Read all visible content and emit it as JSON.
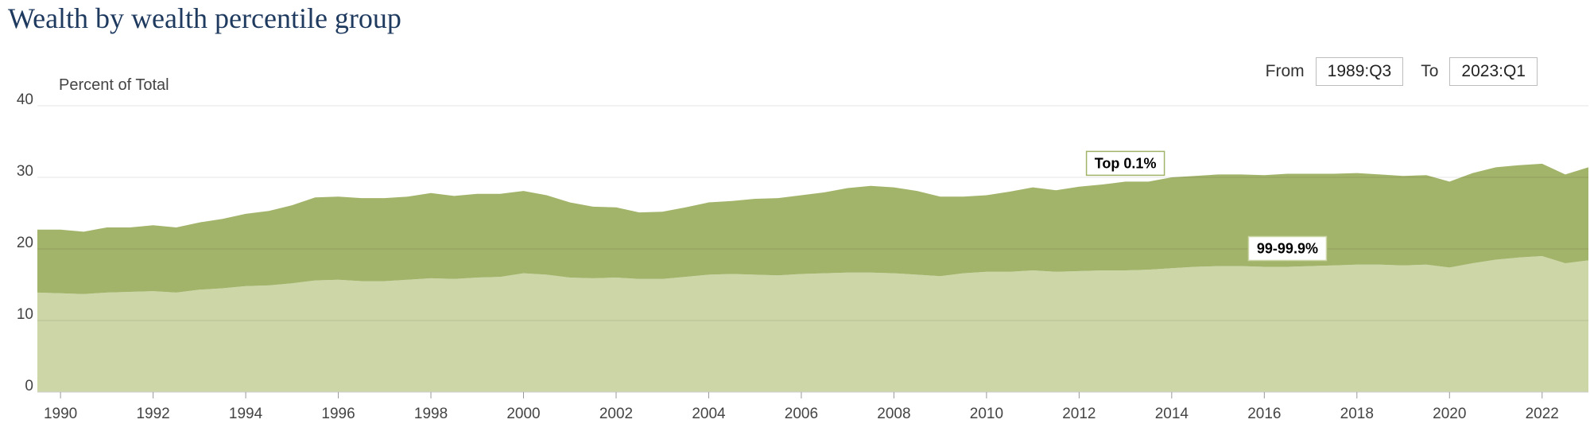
{
  "title": "Wealth by wealth percentile group",
  "range": {
    "from_label": "From",
    "from_value": "1989:Q3",
    "to_label": "To",
    "to_value": "2023:Q1"
  },
  "chart_data": {
    "type": "area",
    "stacked": true,
    "ylabel": "Percent of Total",
    "ylim": [
      0,
      40
    ],
    "yticks": [
      0,
      10,
      20,
      30,
      40
    ],
    "xlim": [
      1989.5,
      2023.0
    ],
    "xticks": [
      1990,
      1992,
      1994,
      1996,
      1998,
      2000,
      2002,
      2004,
      2006,
      2008,
      2010,
      2012,
      2014,
      2016,
      2018,
      2020,
      2022
    ],
    "grid": true,
    "x": [
      1989.5,
      1990.0,
      1990.5,
      1991.0,
      1991.5,
      1992.0,
      1992.5,
      1993.0,
      1993.5,
      1994.0,
      1994.5,
      1995.0,
      1995.5,
      1996.0,
      1996.5,
      1997.0,
      1997.5,
      1998.0,
      1998.5,
      1999.0,
      1999.5,
      2000.0,
      2000.5,
      2001.0,
      2001.5,
      2002.0,
      2002.5,
      2003.0,
      2003.5,
      2004.0,
      2004.5,
      2005.0,
      2005.5,
      2006.0,
      2006.5,
      2007.0,
      2007.5,
      2008.0,
      2008.5,
      2009.0,
      2009.5,
      2010.0,
      2010.5,
      2011.0,
      2011.5,
      2012.0,
      2012.5,
      2013.0,
      2013.5,
      2014.0,
      2014.5,
      2015.0,
      2015.5,
      2016.0,
      2016.5,
      2017.0,
      2017.5,
      2018.0,
      2018.5,
      2019.0,
      2019.5,
      2020.0,
      2020.5,
      2021.0,
      2021.5,
      2022.0,
      2022.5,
      2023.0
    ],
    "series": [
      {
        "name": "99-99.9%",
        "color": "#ccd6a6",
        "values": [
          13.9,
          13.8,
          13.7,
          13.9,
          14.0,
          14.1,
          13.9,
          14.3,
          14.5,
          14.8,
          14.9,
          15.2,
          15.6,
          15.7,
          15.5,
          15.5,
          15.7,
          15.9,
          15.8,
          16.0,
          16.1,
          16.6,
          16.4,
          16.0,
          15.9,
          16.0,
          15.8,
          15.8,
          16.1,
          16.4,
          16.5,
          16.4,
          16.3,
          16.5,
          16.6,
          16.7,
          16.7,
          16.6,
          16.4,
          16.2,
          16.6,
          16.8,
          16.8,
          17.0,
          16.8,
          16.9,
          17.0,
          17.0,
          17.1,
          17.3,
          17.5,
          17.6,
          17.6,
          17.5,
          17.5,
          17.6,
          17.7,
          17.8,
          17.8,
          17.7,
          17.8,
          17.4,
          18.0,
          18.5,
          18.8,
          19.0,
          18.0,
          18.4
        ]
      },
      {
        "name": "Top 0.1%",
        "color": "#a2b46a",
        "values": [
          8.8,
          8.9,
          8.7,
          9.1,
          9.0,
          9.2,
          9.1,
          9.4,
          9.7,
          10.1,
          10.4,
          10.9,
          11.6,
          11.6,
          11.6,
          11.6,
          11.6,
          11.9,
          11.6,
          11.7,
          11.6,
          11.5,
          11.1,
          10.5,
          10.0,
          9.8,
          9.3,
          9.4,
          9.7,
          10.1,
          10.2,
          10.6,
          10.8,
          11.0,
          11.3,
          11.8,
          12.1,
          12.0,
          11.7,
          11.1,
          10.7,
          10.7,
          11.2,
          11.6,
          11.4,
          11.8,
          12.0,
          12.4,
          12.3,
          12.7,
          12.7,
          12.8,
          12.8,
          12.8,
          13.0,
          12.9,
          12.8,
          12.8,
          12.6,
          12.5,
          12.5,
          12.0,
          12.6,
          12.9,
          12.9,
          12.9,
          12.4,
          13.0
        ]
      }
    ]
  }
}
